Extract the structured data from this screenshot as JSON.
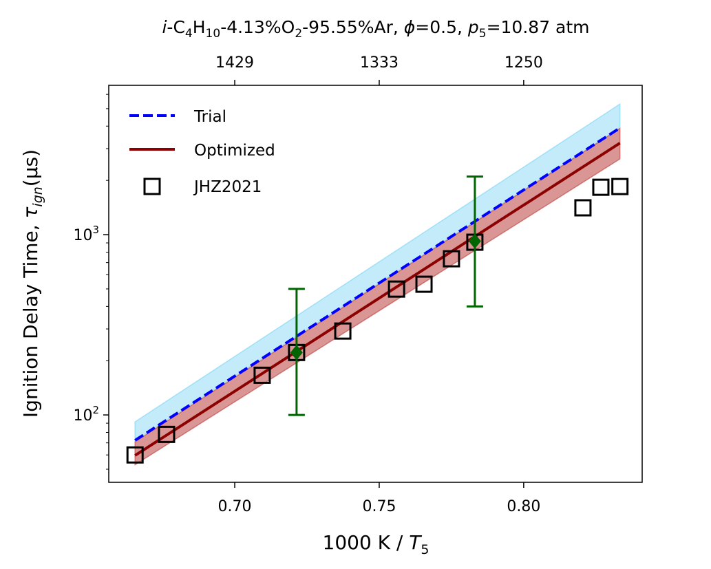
{
  "chart_data": {
    "type": "line",
    "title": "i-C4H10-4.13%O2-95.55%Ar, φ=0.5, p5=10.87 atm",
    "title_parts": {
      "species": "i",
      "rest1": "-C",
      "sub1": "4",
      "rest2": "H",
      "sub2": "10",
      "rest3": "-4.13%O",
      "sub3": "2",
      "rest4": "-95.55%Ar, ",
      "phi": "ϕ",
      "rest5": "=0.5, ",
      "p": "p",
      "sub5": "5",
      "rest6": "=10.87 atm"
    },
    "xlabel": "1000 K / T5",
    "xlabel_parts": {
      "main": "1000 K / ",
      "var": "T",
      "sub": "5"
    },
    "ylabel": "Ignition Delay Time, τign (μs)",
    "ylabel_parts": {
      "main": "Ignition Delay Time, ",
      "tau": "τ",
      "sub": "ign",
      "unit": "(μs)"
    },
    "xlim": [
      0.6564,
      0.841
    ],
    "ylim": [
      42.3,
      6735
    ],
    "yscale": "log",
    "x_ticks": [
      0.7,
      0.75,
      0.8
    ],
    "x_tick_labels": [
      "0.70",
      "0.75",
      "0.80"
    ],
    "y_ticks": [
      100,
      1000
    ],
    "y_tick_labels": [
      "10",
      "2",
      "10",
      "3"
    ],
    "top_axis": {
      "ticks_at_x": [
        0.7,
        0.75,
        0.8
      ],
      "labels": [
        "1429",
        "1333",
        "1250"
      ]
    },
    "grid": false,
    "legend_position": "top-left",
    "series": [
      {
        "name": "Trial",
        "style": "dashed",
        "color": "#0000ff",
        "x": [
          0.6655,
          0.8333
        ],
        "y": [
          72.3,
          3908
        ],
        "band": {
          "color": "#87d8f5",
          "lower": [
            72.3,
            3908
          ],
          "upper": [
            91.6,
            5300
          ]
        }
      },
      {
        "name": "Optimized",
        "style": "solid",
        "color": "#8b0000",
        "x": [
          0.6655,
          0.8333
        ],
        "y": [
          59.6,
          3221
        ],
        "band": {
          "color": "#c0504d",
          "lower": [
            53,
            2630
          ],
          "upper": [
            71,
            3880
          ]
        }
      },
      {
        "name": "JHZ2021",
        "style": "marker-square",
        "color": "#000000",
        "x": [
          0.6655,
          0.6764,
          0.7095,
          0.7214,
          0.7374,
          0.756,
          0.7655,
          0.775,
          0.7831,
          0.8205,
          0.8267,
          0.8333
        ],
        "y": [
          60,
          78,
          166,
          222,
          292,
          499,
          531,
          735,
          908,
          1409,
          1832,
          1849
        ]
      }
    ],
    "error_points": {
      "color": "#006400",
      "x": [
        0.7214,
        0.7831
      ],
      "y": [
        222,
        920
      ],
      "lower": [
        100,
        400
      ],
      "upper": [
        500,
        2100
      ]
    }
  }
}
